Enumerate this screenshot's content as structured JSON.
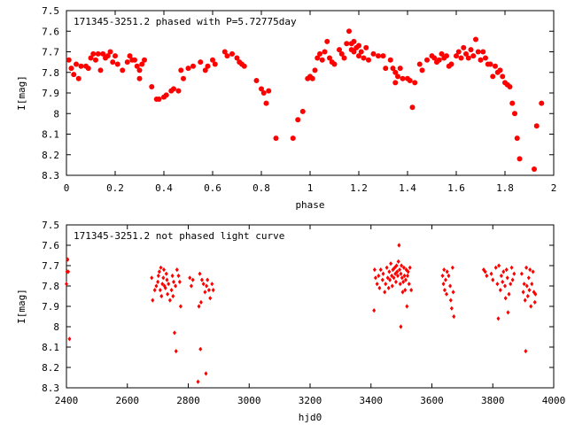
{
  "chart_data": [
    {
      "type": "scatter",
      "title": "171345-3251.2 phased with P=5.72775day",
      "xlabel": "phase",
      "ylabel": "I[mag]",
      "xlim": [
        0,
        2
      ],
      "ylim": [
        7.5,
        8.3
      ],
      "y_inverted": true,
      "grid": false,
      "marker": "filled-circle",
      "color": "#ff0000",
      "xticks": [
        "0",
        "0.2",
        "0.4",
        "0.6",
        "0.8",
        "1",
        "1.2",
        "1.4",
        "1.6",
        "1.8",
        "2"
      ],
      "yticks": [
        "7.5",
        "7.6",
        "7.7",
        "7.8",
        "7.9",
        "8",
        "8.1",
        "8.2",
        "8.3"
      ],
      "points": [
        [
          0.01,
          7.74
        ],
        [
          0.02,
          7.78
        ],
        [
          0.03,
          7.81
        ],
        [
          0.04,
          7.76
        ],
        [
          0.05,
          7.83
        ],
        [
          0.06,
          7.77
        ],
        [
          0.08,
          7.77
        ],
        [
          0.09,
          7.78
        ],
        [
          0.1,
          7.73
        ],
        [
          0.11,
          7.71
        ],
        [
          0.12,
          7.74
        ],
        [
          0.13,
          7.71
        ],
        [
          0.14,
          7.79
        ],
        [
          0.15,
          7.71
        ],
        [
          0.16,
          7.73
        ],
        [
          0.17,
          7.72
        ],
        [
          0.18,
          7.7
        ],
        [
          0.19,
          7.75
        ],
        [
          0.2,
          7.72
        ],
        [
          0.21,
          7.76
        ],
        [
          0.23,
          7.79
        ],
        [
          0.25,
          7.75
        ],
        [
          0.26,
          7.72
        ],
        [
          0.27,
          7.74
        ],
        [
          0.28,
          7.74
        ],
        [
          0.29,
          7.77
        ],
        [
          0.3,
          7.79
        ],
        [
          0.3,
          7.83
        ],
        [
          0.31,
          7.76
        ],
        [
          0.32,
          7.74
        ],
        [
          0.35,
          7.87
        ],
        [
          0.37,
          7.93
        ],
        [
          0.38,
          7.93
        ],
        [
          0.4,
          7.92
        ],
        [
          0.41,
          7.91
        ],
        [
          0.43,
          7.89
        ],
        [
          0.44,
          7.88
        ],
        [
          0.46,
          7.89
        ],
        [
          0.47,
          7.79
        ],
        [
          0.48,
          7.83
        ],
        [
          0.5,
          7.78
        ],
        [
          0.52,
          7.77
        ],
        [
          0.55,
          7.75
        ],
        [
          0.57,
          7.79
        ],
        [
          0.58,
          7.77
        ],
        [
          0.6,
          7.74
        ],
        [
          0.61,
          7.76
        ],
        [
          0.65,
          7.7
        ],
        [
          0.66,
          7.72
        ],
        [
          0.68,
          7.71
        ],
        [
          0.7,
          7.73
        ],
        [
          0.71,
          7.75
        ],
        [
          0.72,
          7.76
        ],
        [
          0.73,
          7.77
        ],
        [
          0.78,
          7.84
        ],
        [
          0.8,
          7.88
        ],
        [
          0.81,
          7.9
        ],
        [
          0.82,
          7.95
        ],
        [
          0.83,
          7.89
        ],
        [
          0.86,
          8.12
        ],
        [
          0.93,
          8.12
        ],
        [
          0.95,
          8.03
        ],
        [
          0.97,
          7.99
        ],
        [
          0.99,
          7.83
        ],
        [
          1.0,
          7.82
        ],
        [
          1.01,
          7.83
        ],
        [
          1.02,
          7.79
        ],
        [
          1.03,
          7.73
        ],
        [
          1.04,
          7.71
        ],
        [
          1.05,
          7.74
        ],
        [
          1.06,
          7.7
        ],
        [
          1.07,
          7.65
        ],
        [
          1.08,
          7.73
        ],
        [
          1.09,
          7.75
        ],
        [
          1.1,
          7.76
        ],
        [
          1.12,
          7.69
        ],
        [
          1.13,
          7.71
        ],
        [
          1.14,
          7.73
        ],
        [
          1.15,
          7.66
        ],
        [
          1.16,
          7.6
        ],
        [
          1.17,
          7.66
        ],
        [
          1.17,
          7.69
        ],
        [
          1.18,
          7.65
        ],
        [
          1.18,
          7.7
        ],
        [
          1.19,
          7.68
        ],
        [
          1.2,
          7.67
        ],
        [
          1.2,
          7.72
        ],
        [
          1.21,
          7.7
        ],
        [
          1.22,
          7.73
        ],
        [
          1.23,
          7.68
        ],
        [
          1.24,
          7.74
        ],
        [
          1.26,
          7.71
        ],
        [
          1.28,
          7.72
        ],
        [
          1.3,
          7.72
        ],
        [
          1.31,
          7.78
        ],
        [
          1.33,
          7.74
        ],
        [
          1.34,
          7.78
        ],
        [
          1.35,
          7.8
        ],
        [
          1.35,
          7.85
        ],
        [
          1.36,
          7.82
        ],
        [
          1.37,
          7.78
        ],
        [
          1.38,
          7.83
        ],
        [
          1.4,
          7.83
        ],
        [
          1.41,
          7.84
        ],
        [
          1.42,
          7.97
        ],
        [
          1.43,
          7.85
        ],
        [
          1.45,
          7.76
        ],
        [
          1.46,
          7.79
        ],
        [
          1.48,
          7.74
        ],
        [
          1.5,
          7.72
        ],
        [
          1.51,
          7.73
        ],
        [
          1.52,
          7.75
        ],
        [
          1.53,
          7.74
        ],
        [
          1.54,
          7.71
        ],
        [
          1.55,
          7.73
        ],
        [
          1.56,
          7.72
        ],
        [
          1.57,
          7.77
        ],
        [
          1.58,
          7.76
        ],
        [
          1.6,
          7.72
        ],
        [
          1.61,
          7.7
        ],
        [
          1.62,
          7.73
        ],
        [
          1.63,
          7.68
        ],
        [
          1.64,
          7.71
        ],
        [
          1.65,
          7.73
        ],
        [
          1.66,
          7.69
        ],
        [
          1.67,
          7.72
        ],
        [
          1.68,
          7.64
        ],
        [
          1.69,
          7.7
        ],
        [
          1.7,
          7.74
        ],
        [
          1.71,
          7.7
        ],
        [
          1.72,
          7.73
        ],
        [
          1.73,
          7.76
        ],
        [
          1.74,
          7.76
        ],
        [
          1.75,
          7.82
        ],
        [
          1.76,
          7.77
        ],
        [
          1.77,
          7.8
        ],
        [
          1.78,
          7.79
        ],
        [
          1.79,
          7.82
        ],
        [
          1.8,
          7.85
        ],
        [
          1.81,
          7.86
        ],
        [
          1.82,
          7.87
        ],
        [
          1.83,
          7.95
        ],
        [
          1.84,
          8.0
        ],
        [
          1.85,
          8.12
        ],
        [
          1.86,
          8.22
        ],
        [
          1.92,
          8.27
        ],
        [
          1.93,
          8.06
        ],
        [
          1.95,
          7.95
        ]
      ]
    },
    {
      "type": "scatter",
      "title": "171345-3251.2 not phased light curve",
      "xlabel": "hjd0",
      "ylabel": "I[mag]",
      "xlim": [
        2400,
        4000
      ],
      "ylim": [
        7.5,
        8.3
      ],
      "y_inverted": true,
      "grid": false,
      "marker": "diamond",
      "color": "#ff0000",
      "xticks": [
        "2400",
        "2600",
        "2800",
        "3000",
        "3200",
        "3400",
        "3600",
        "3800",
        "4000"
      ],
      "yticks": [
        "7.5",
        "7.6",
        "7.7",
        "7.8",
        "7.9",
        "8",
        "8.1",
        "8.2",
        "8.3"
      ],
      "points": [
        [
          2400,
          7.79
        ],
        [
          2402,
          7.73
        ],
        [
          2404,
          7.67
        ],
        [
          2406,
          7.73
        ],
        [
          2410,
          8.06
        ],
        [
          2680,
          7.76
        ],
        [
          2683,
          7.87
        ],
        [
          2690,
          7.82
        ],
        [
          2695,
          7.8
        ],
        [
          2700,
          7.78
        ],
        [
          2702,
          7.75
        ],
        [
          2705,
          7.73
        ],
        [
          2708,
          7.82
        ],
        [
          2710,
          7.71
        ],
        [
          2712,
          7.85
        ],
        [
          2715,
          7.79
        ],
        [
          2718,
          7.76
        ],
        [
          2720,
          7.72
        ],
        [
          2722,
          7.8
        ],
        [
          2725,
          7.81
        ],
        [
          2728,
          7.74
        ],
        [
          2730,
          7.77
        ],
        [
          2732,
          7.84
        ],
        [
          2735,
          7.79
        ],
        [
          2740,
          7.87
        ],
        [
          2745,
          7.82
        ],
        [
          2748,
          7.75
        ],
        [
          2750,
          7.85
        ],
        [
          2752,
          7.78
        ],
        [
          2755,
          8.03
        ],
        [
          2758,
          7.8
        ],
        [
          2760,
          8.12
        ],
        [
          2763,
          7.72
        ],
        [
          2768,
          7.75
        ],
        [
          2772,
          7.78
        ],
        [
          2775,
          7.9
        ],
        [
          2805,
          7.76
        ],
        [
          2810,
          7.8
        ],
        [
          2815,
          7.77
        ],
        [
          2835,
          7.9
        ],
        [
          2838,
          7.74
        ],
        [
          2840,
          8.11
        ],
        [
          2842,
          7.88
        ],
        [
          2845,
          7.77
        ],
        [
          2850,
          7.79
        ],
        [
          2855,
          7.83
        ],
        [
          2858,
          8.23
        ],
        [
          2860,
          7.8
        ],
        [
          2863,
          7.77
        ],
        [
          2868,
          7.82
        ],
        [
          2872,
          7.86
        ],
        [
          2878,
          7.79
        ],
        [
          2882,
          7.82
        ],
        [
          2832,
          8.27
        ],
        [
          3410,
          7.92
        ],
        [
          3412,
          7.72
        ],
        [
          3415,
          7.76
        ],
        [
          3420,
          7.79
        ],
        [
          3425,
          7.75
        ],
        [
          3428,
          7.81
        ],
        [
          3432,
          7.72
        ],
        [
          3438,
          7.77
        ],
        [
          3440,
          7.74
        ],
        [
          3445,
          7.83
        ],
        [
          3448,
          7.79
        ],
        [
          3452,
          7.71
        ],
        [
          3455,
          7.76
        ],
        [
          3458,
          7.81
        ],
        [
          3460,
          7.73
        ],
        [
          3462,
          7.77
        ],
        [
          3465,
          7.69
        ],
        [
          3468,
          7.75
        ],
        [
          3470,
          7.8
        ],
        [
          3472,
          7.72
        ],
        [
          3475,
          7.76
        ],
        [
          3478,
          7.71
        ],
        [
          3480,
          7.74
        ],
        [
          3482,
          7.78
        ],
        [
          3484,
          7.7
        ],
        [
          3486,
          7.73
        ],
        [
          3488,
          7.75
        ],
        [
          3490,
          7.68
        ],
        [
          3492,
          7.6
        ],
        [
          3494,
          7.72
        ],
        [
          3496,
          7.79
        ],
        [
          3498,
          7.74
        ],
        [
          3500,
          7.7
        ],
        [
          3502,
          7.76
        ],
        [
          3504,
          7.83
        ],
        [
          3506,
          7.78
        ],
        [
          3508,
          7.71
        ],
        [
          3510,
          7.75
        ],
        [
          3512,
          7.82
        ],
        [
          3514,
          7.77
        ],
        [
          3516,
          7.72
        ],
        [
          3518,
          7.9
        ],
        [
          3520,
          7.75
        ],
        [
          3522,
          7.73
        ],
        [
          3525,
          7.79
        ],
        [
          3528,
          7.71
        ],
        [
          3532,
          7.82
        ],
        [
          3498,
          8.0
        ],
        [
          3635,
          7.75
        ],
        [
          3638,
          7.79
        ],
        [
          3640,
          7.72
        ],
        [
          3642,
          7.82
        ],
        [
          3645,
          7.77
        ],
        [
          3648,
          7.84
        ],
        [
          3650,
          7.73
        ],
        [
          3655,
          7.75
        ],
        [
          3660,
          7.8
        ],
        [
          3662,
          7.87
        ],
        [
          3665,
          7.91
        ],
        [
          3668,
          7.71
        ],
        [
          3670,
          7.83
        ],
        [
          3672,
          7.95
        ],
        [
          3770,
          7.72
        ],
        [
          3775,
          7.73
        ],
        [
          3780,
          7.75
        ],
        [
          3795,
          7.74
        ],
        [
          3800,
          7.77
        ],
        [
          3810,
          7.71
        ],
        [
          3815,
          7.79
        ],
        [
          3818,
          7.96
        ],
        [
          3820,
          7.7
        ],
        [
          3825,
          7.82
        ],
        [
          3828,
          7.75
        ],
        [
          3832,
          7.78
        ],
        [
          3835,
          7.73
        ],
        [
          3840,
          7.8
        ],
        [
          3842,
          7.86
        ],
        [
          3845,
          7.72
        ],
        [
          3848,
          7.76
        ],
        [
          3850,
          7.93
        ],
        [
          3853,
          7.84
        ],
        [
          3858,
          7.79
        ],
        [
          3862,
          7.71
        ],
        [
          3865,
          7.77
        ],
        [
          3870,
          7.74
        ],
        [
          3895,
          7.74
        ],
        [
          3900,
          7.83
        ],
        [
          3903,
          7.79
        ],
        [
          3906,
          7.87
        ],
        [
          3908,
          8.12
        ],
        [
          3910,
          7.71
        ],
        [
          3912,
          7.8
        ],
        [
          3915,
          7.85
        ],
        [
          3918,
          7.76
        ],
        [
          3920,
          7.82
        ],
        [
          3922,
          7.72
        ],
        [
          3925,
          7.9
        ],
        [
          3928,
          7.79
        ],
        [
          3932,
          7.73
        ],
        [
          3935,
          7.83
        ],
        [
          3938,
          7.88
        ],
        [
          3940,
          7.84
        ]
      ]
    }
  ]
}
